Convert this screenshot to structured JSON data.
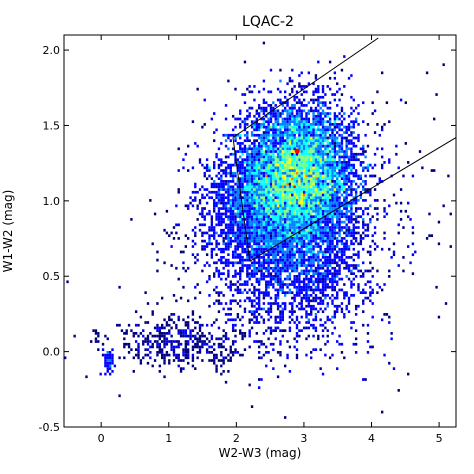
{
  "chart_data": {
    "type": "heatmap",
    "title": "LQAC-2",
    "xlabel": "W2-W3 (mag)",
    "ylabel": "W1-W2 (mag)",
    "xlim": [
      -0.55,
      5.25
    ],
    "ylim": [
      -0.5,
      2.1
    ],
    "xticks": [
      0,
      1,
      2,
      3,
      4,
      5
    ],
    "xtick_labels": [
      "0",
      "1",
      "2",
      "3",
      "4",
      "5"
    ],
    "yticks": [
      -0.5,
      0.0,
      0.5,
      1.0,
      1.5,
      2.0
    ],
    "ytick_labels": [
      "-0.5",
      "0.0",
      "0.5",
      "1.0",
      "1.5",
      "2.0"
    ],
    "grid": false,
    "colormap": [
      "#00007f",
      "#0000ff",
      "#007fff",
      "#00ffff",
      "#7fff7f",
      "#ffff00",
      "#ff7f00",
      "#ff0000"
    ],
    "density_peak": {
      "x": 2.9,
      "y": 1.33
    },
    "selection_wedge": {
      "vertices": [
        [
          1.95,
          1.42
        ],
        [
          4.1,
          2.08
        ]
      ],
      "left_edge": [
        [
          1.95,
          1.42
        ],
        [
          2.2,
          0.6
        ]
      ],
      "lower_edge": [
        [
          2.2,
          0.6
        ],
        [
          5.25,
          1.42
        ]
      ]
    },
    "point_groups": [
      {
        "name": "",
        "center": [
          2.9,
          1.15
        ],
        "spread": [
          0.62,
          0.32
        ],
        "intensity": "high"
      },
      {
        "name": "",
        "center": [
          2.8,
          0.55
        ],
        "spread": [
          0.55,
          0.3
        ],
        "intensity": "low"
      },
      {
        "name": "",
        "center": [
          1.2,
          0.05
        ],
        "spread": [
          0.6,
          0.12
        ],
        "intensity": "low"
      },
      {
        "name": "",
        "center": [
          0.1,
          -0.05
        ],
        "spread": [
          0.05,
          0.05
        ],
        "intensity": "low"
      }
    ]
  }
}
